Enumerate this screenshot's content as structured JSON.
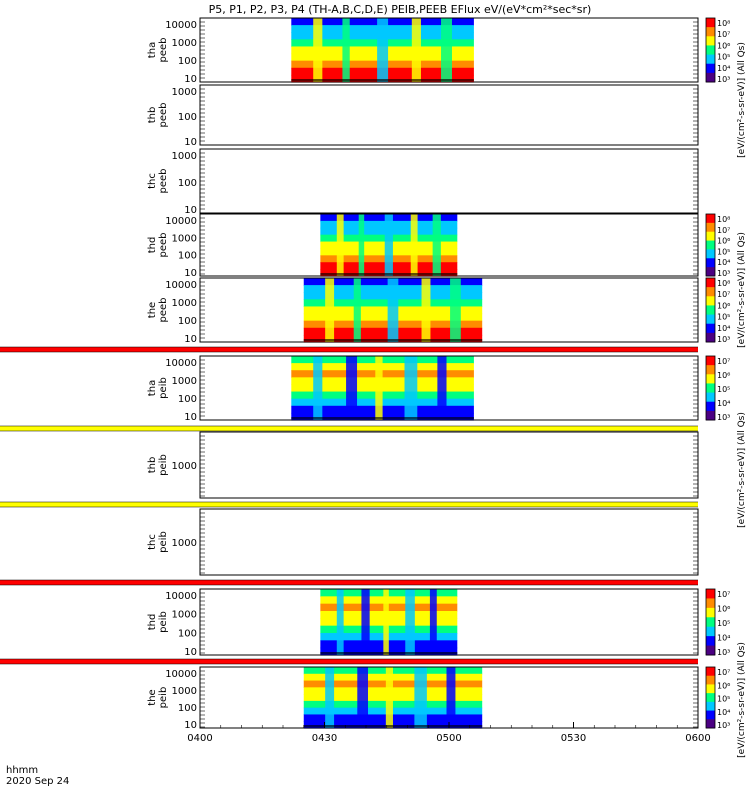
{
  "title": "P5, P1, P2, P3, P4 (TH-A,B,C,D,E) PEIB,PEEB EFlux eV/(eV*cm²*sec*sr)",
  "footer": {
    "time_label": "hhmm",
    "date_label": "2020 Sep 24"
  },
  "x_axis": {
    "ticks": [
      "0400",
      "0430",
      "0500",
      "0530",
      "0600"
    ],
    "range_minutes": [
      0,
      120
    ]
  },
  "colors": {
    "palette": [
      "#4b0082",
      "#0000ff",
      "#00c8ff",
      "#00ff80",
      "#ffff00",
      "#ff8c00",
      "#ff0000"
    ],
    "flag_red": "#ff0000",
    "flag_yellow": "#ffff00"
  },
  "colorbars": {
    "electron_unit": "[eV/(cm²-s-sr-eV)] (All Qs)",
    "ion_unit": "[eV/(cm²-s-sr-eV)] (All Qs)",
    "electron_ticks": [
      "10³",
      "10⁴",
      "10⁵",
      "10⁶",
      "10⁷",
      "10⁸"
    ],
    "ion_ticks": [
      "10³",
      "10⁴",
      "10⁵",
      "10⁶",
      "10⁷"
    ]
  },
  "chart_data": {
    "type": "heatmap",
    "x_unit": "UT (hhmm)",
    "panels": [
      {
        "label1": "tha",
        "label2": "peeb",
        "y_ticks": [
          "10",
          "100",
          "1000",
          "10000"
        ],
        "data_range_min": [
          22,
          66
        ],
        "kind": "electron",
        "has_colorbar": true,
        "flag": null
      },
      {
        "label1": "thb",
        "label2": "peeb",
        "y_ticks": [
          "10",
          "100",
          "1000"
        ],
        "data_range_min": null,
        "kind": "none",
        "has_colorbar": false,
        "flag": null
      },
      {
        "label1": "thc",
        "label2": "peeb",
        "y_ticks": [
          "10",
          "100",
          "1000"
        ],
        "data_range_min": null,
        "kind": "none",
        "has_colorbar": false,
        "flag": null
      },
      {
        "label1": "thd",
        "label2": "peeb",
        "y_ticks": [
          "10",
          "100",
          "1000",
          "10000"
        ],
        "data_range_min": [
          29,
          62
        ],
        "kind": "electron",
        "has_colorbar": true,
        "flag": null
      },
      {
        "label1": "the",
        "label2": "peeb",
        "y_ticks": [
          "10",
          "100",
          "1000",
          "10000"
        ],
        "data_range_min": [
          25,
          68
        ],
        "kind": "electron",
        "has_colorbar": true,
        "flag": "red"
      },
      {
        "label1": "tha",
        "label2": "peib",
        "y_ticks": [
          "10",
          "100",
          "1000",
          "10000"
        ],
        "data_range_min": [
          22,
          66
        ],
        "kind": "ion",
        "has_colorbar": true,
        "flag": "yellow"
      },
      {
        "label1": "thb",
        "label2": "peib",
        "y_ticks": [
          "1000"
        ],
        "data_range_min": null,
        "kind": "none",
        "has_colorbar": false,
        "flag": "yellow"
      },
      {
        "label1": "thc",
        "label2": "peib",
        "y_ticks": [
          "1000"
        ],
        "data_range_min": null,
        "kind": "none",
        "has_colorbar": false,
        "flag": "red"
      },
      {
        "label1": "thd",
        "label2": "peib",
        "y_ticks": [
          "10",
          "100",
          "1000",
          "10000"
        ],
        "data_range_min": [
          29,
          62
        ],
        "kind": "ion",
        "has_colorbar": true,
        "flag": "red"
      },
      {
        "label1": "the",
        "label2": "peib",
        "y_ticks": [
          "10",
          "100",
          "1000",
          "10000"
        ],
        "data_range_min": [
          25,
          68
        ],
        "kind": "ion",
        "has_colorbar": true,
        "flag": null
      }
    ]
  }
}
